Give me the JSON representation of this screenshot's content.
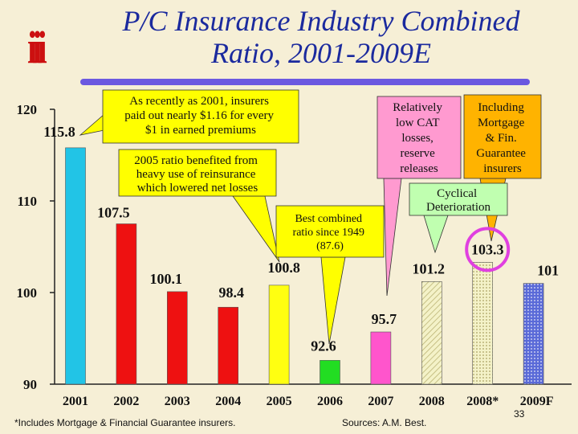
{
  "slide": {
    "title_line1": "P/C Insurance Industry Combined",
    "title_line2": "Ratio, 2001-2009E",
    "logo_text": "iii",
    "footnote": "*Includes Mortgage & Financial Guarantee insurers.",
    "sources": "Sources: A.M. Best.",
    "page_number": "33"
  },
  "colors": {
    "title": "#1b2a9e",
    "logo": "#cc1010",
    "background": "#f6efd6",
    "header_line": "#6b58e0",
    "callout_yellow": "#ffff00",
    "callout_pink": "#ff9ad0",
    "callout_orange": "#ffb300",
    "callout_green": "#c0ffb0",
    "highlight_circle": "#e040e0"
  },
  "chart_data": {
    "type": "bar",
    "categories": [
      "2001",
      "2002",
      "2003",
      "2004",
      "2005",
      "2006",
      "2007",
      "2008",
      "2008*",
      "2009F"
    ],
    "values": [
      115.8,
      107.5,
      100.1,
      98.4,
      100.8,
      92.6,
      95.7,
      101.2,
      103.3,
      101
    ],
    "value_labels": [
      "115.8",
      "107.5",
      "100.1",
      "98.4",
      "100.8",
      "92.6",
      "95.7",
      "101.2",
      "103.3",
      "101"
    ],
    "bar_colors": [
      "#22c4e6",
      "#ee1111",
      "#ee1111",
      "#ee1111",
      "#ffff11",
      "#22dd22",
      "#ff55cc",
      "#eeeebb",
      "#eeeebb",
      "#4a5fd0"
    ],
    "bar_patterns": [
      "solid",
      "solid",
      "solid",
      "solid",
      "solid",
      "solid",
      "solid",
      "hatch",
      "dots",
      "dots"
    ],
    "ylim": [
      90,
      120
    ],
    "yticks": [
      "90",
      "100",
      "110",
      "120"
    ],
    "ytick_values": [
      90,
      100,
      110,
      120
    ],
    "highlighted_category": "2008*",
    "annotations": [
      {
        "id": "a2001",
        "text": "As recently as 2001, insurers paid out nearly $1.16 for every $1 in earned premiums",
        "color": "#ffff00",
        "points_to": "2001"
      },
      {
        "id": "a2005",
        "text": "2005 ratio benefited from heavy use of reinsurance which lowered net losses",
        "color": "#ffff00",
        "points_to": "2005"
      },
      {
        "id": "a2006",
        "text": "Best combined ratio since 1949 (87.6)",
        "color": "#ffff00",
        "points_to": "2006"
      },
      {
        "id": "a2007",
        "text": "Relatively low CAT losses, reserve releases",
        "color": "#ff9ad0",
        "points_to": "2007"
      },
      {
        "id": "a2008s",
        "text": "Including Mortgage & Fin. Guarantee insurers",
        "color": "#ffb300",
        "points_to": "2008*"
      },
      {
        "id": "acyc",
        "text": "Cyclical Deterioration",
        "color": "#c0ffb0",
        "points_to": "2008"
      }
    ]
  }
}
